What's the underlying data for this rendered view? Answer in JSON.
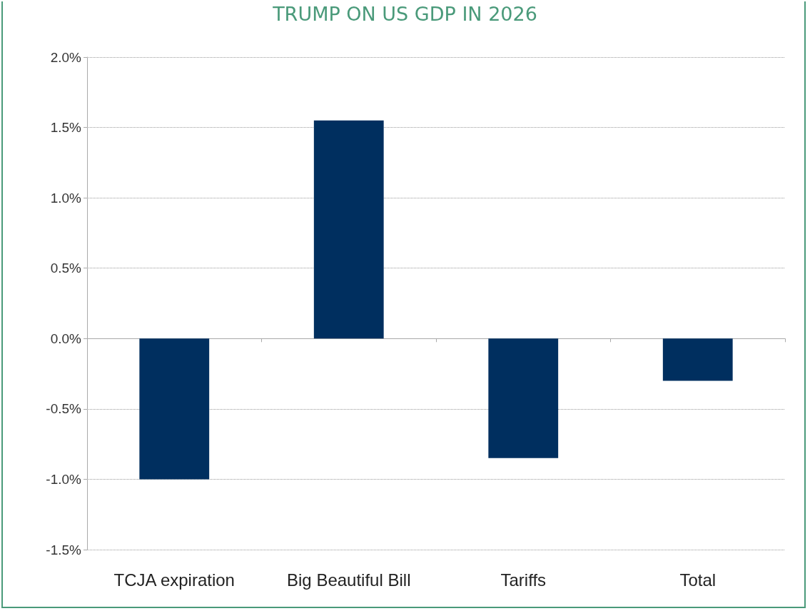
{
  "chart_data": {
    "type": "bar",
    "title": "TRUMP ON US GDP IN 2026",
    "categories": [
      "TCJA expiration",
      "Big Beautiful Bill",
      "Tariffs",
      "Total"
    ],
    "values": [
      -1.0,
      1.55,
      -0.85,
      -0.3
    ],
    "color": "#002f5f",
    "ylim": [
      -1.5,
      2.0
    ],
    "yticks": [
      {
        "value": -1.5,
        "label": "-1.5%"
      },
      {
        "value": -1.0,
        "label": "-1.0%"
      },
      {
        "value": -0.5,
        "label": "-0.5%"
      },
      {
        "value": 0,
        "label": "0.0%"
      },
      {
        "value": 0.5,
        "label": "0.5%"
      },
      {
        "value": 1.0,
        "label": "1.0%"
      },
      {
        "value": 1.5,
        "label": "1.5%"
      },
      {
        "value": 2.0,
        "label": "2.0%"
      }
    ],
    "grid": "y"
  }
}
